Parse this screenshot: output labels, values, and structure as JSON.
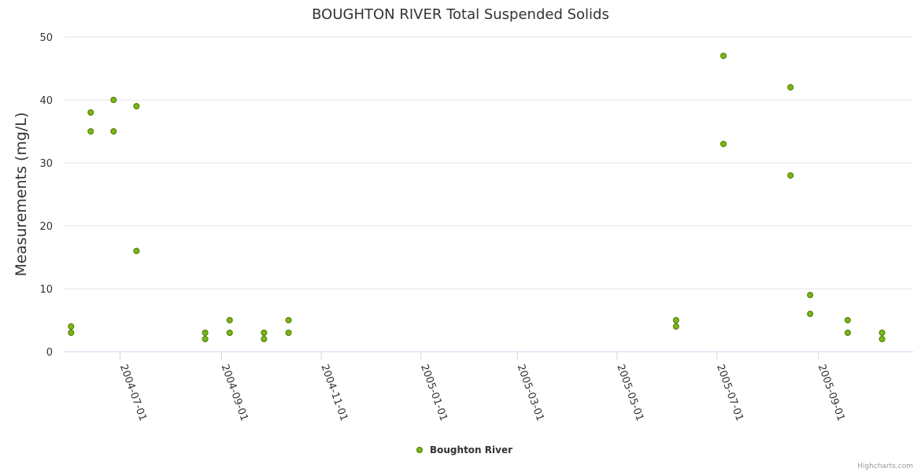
{
  "chart_data": {
    "type": "scatter",
    "title": "BOUGHTON RIVER Total Suspended Solids",
    "xlabel": "",
    "ylabel": "Measurements (mg/L)",
    "ylim": [
      0,
      50
    ],
    "yticks": [
      0,
      10,
      20,
      30,
      40,
      50
    ],
    "xlim": [
      "2004-05-28",
      "2005-10-29"
    ],
    "xticks": [
      "2004-07-01",
      "2004-09-01",
      "2004-11-01",
      "2005-01-01",
      "2005-03-01",
      "2005-05-01",
      "2005-07-01",
      "2005-09-01"
    ],
    "grid": true,
    "legend_position": "bottom-center",
    "series": [
      {
        "name": "Boughton River",
        "color": "#7cb518",
        "points": [
          {
            "x": "2004-06-01",
            "y": 4
          },
          {
            "x": "2004-06-01",
            "y": 3
          },
          {
            "x": "2004-06-13",
            "y": 38
          },
          {
            "x": "2004-06-13",
            "y": 35
          },
          {
            "x": "2004-06-27",
            "y": 40
          },
          {
            "x": "2004-06-27",
            "y": 35
          },
          {
            "x": "2004-07-11",
            "y": 39
          },
          {
            "x": "2004-07-11",
            "y": 16
          },
          {
            "x": "2004-08-22",
            "y": 3
          },
          {
            "x": "2004-08-22",
            "y": 2
          },
          {
            "x": "2004-09-06",
            "y": 5
          },
          {
            "x": "2004-09-06",
            "y": 3
          },
          {
            "x": "2004-09-27",
            "y": 3
          },
          {
            "x": "2004-09-27",
            "y": 2
          },
          {
            "x": "2004-10-12",
            "y": 5
          },
          {
            "x": "2004-10-12",
            "y": 3
          },
          {
            "x": "2005-06-06",
            "y": 5
          },
          {
            "x": "2005-06-06",
            "y": 4
          },
          {
            "x": "2005-07-05",
            "y": 47
          },
          {
            "x": "2005-07-05",
            "y": 33
          },
          {
            "x": "2005-08-15",
            "y": 42
          },
          {
            "x": "2005-08-15",
            "y": 28
          },
          {
            "x": "2005-08-27",
            "y": 9
          },
          {
            "x": "2005-08-27",
            "y": 6
          },
          {
            "x": "2005-09-19",
            "y": 5
          },
          {
            "x": "2005-09-19",
            "y": 3
          },
          {
            "x": "2005-10-10",
            "y": 3
          },
          {
            "x": "2005-10-10",
            "y": 2
          }
        ]
      }
    ]
  },
  "legend": {
    "label": "Boughton River"
  },
  "credits": "Highcharts.com"
}
